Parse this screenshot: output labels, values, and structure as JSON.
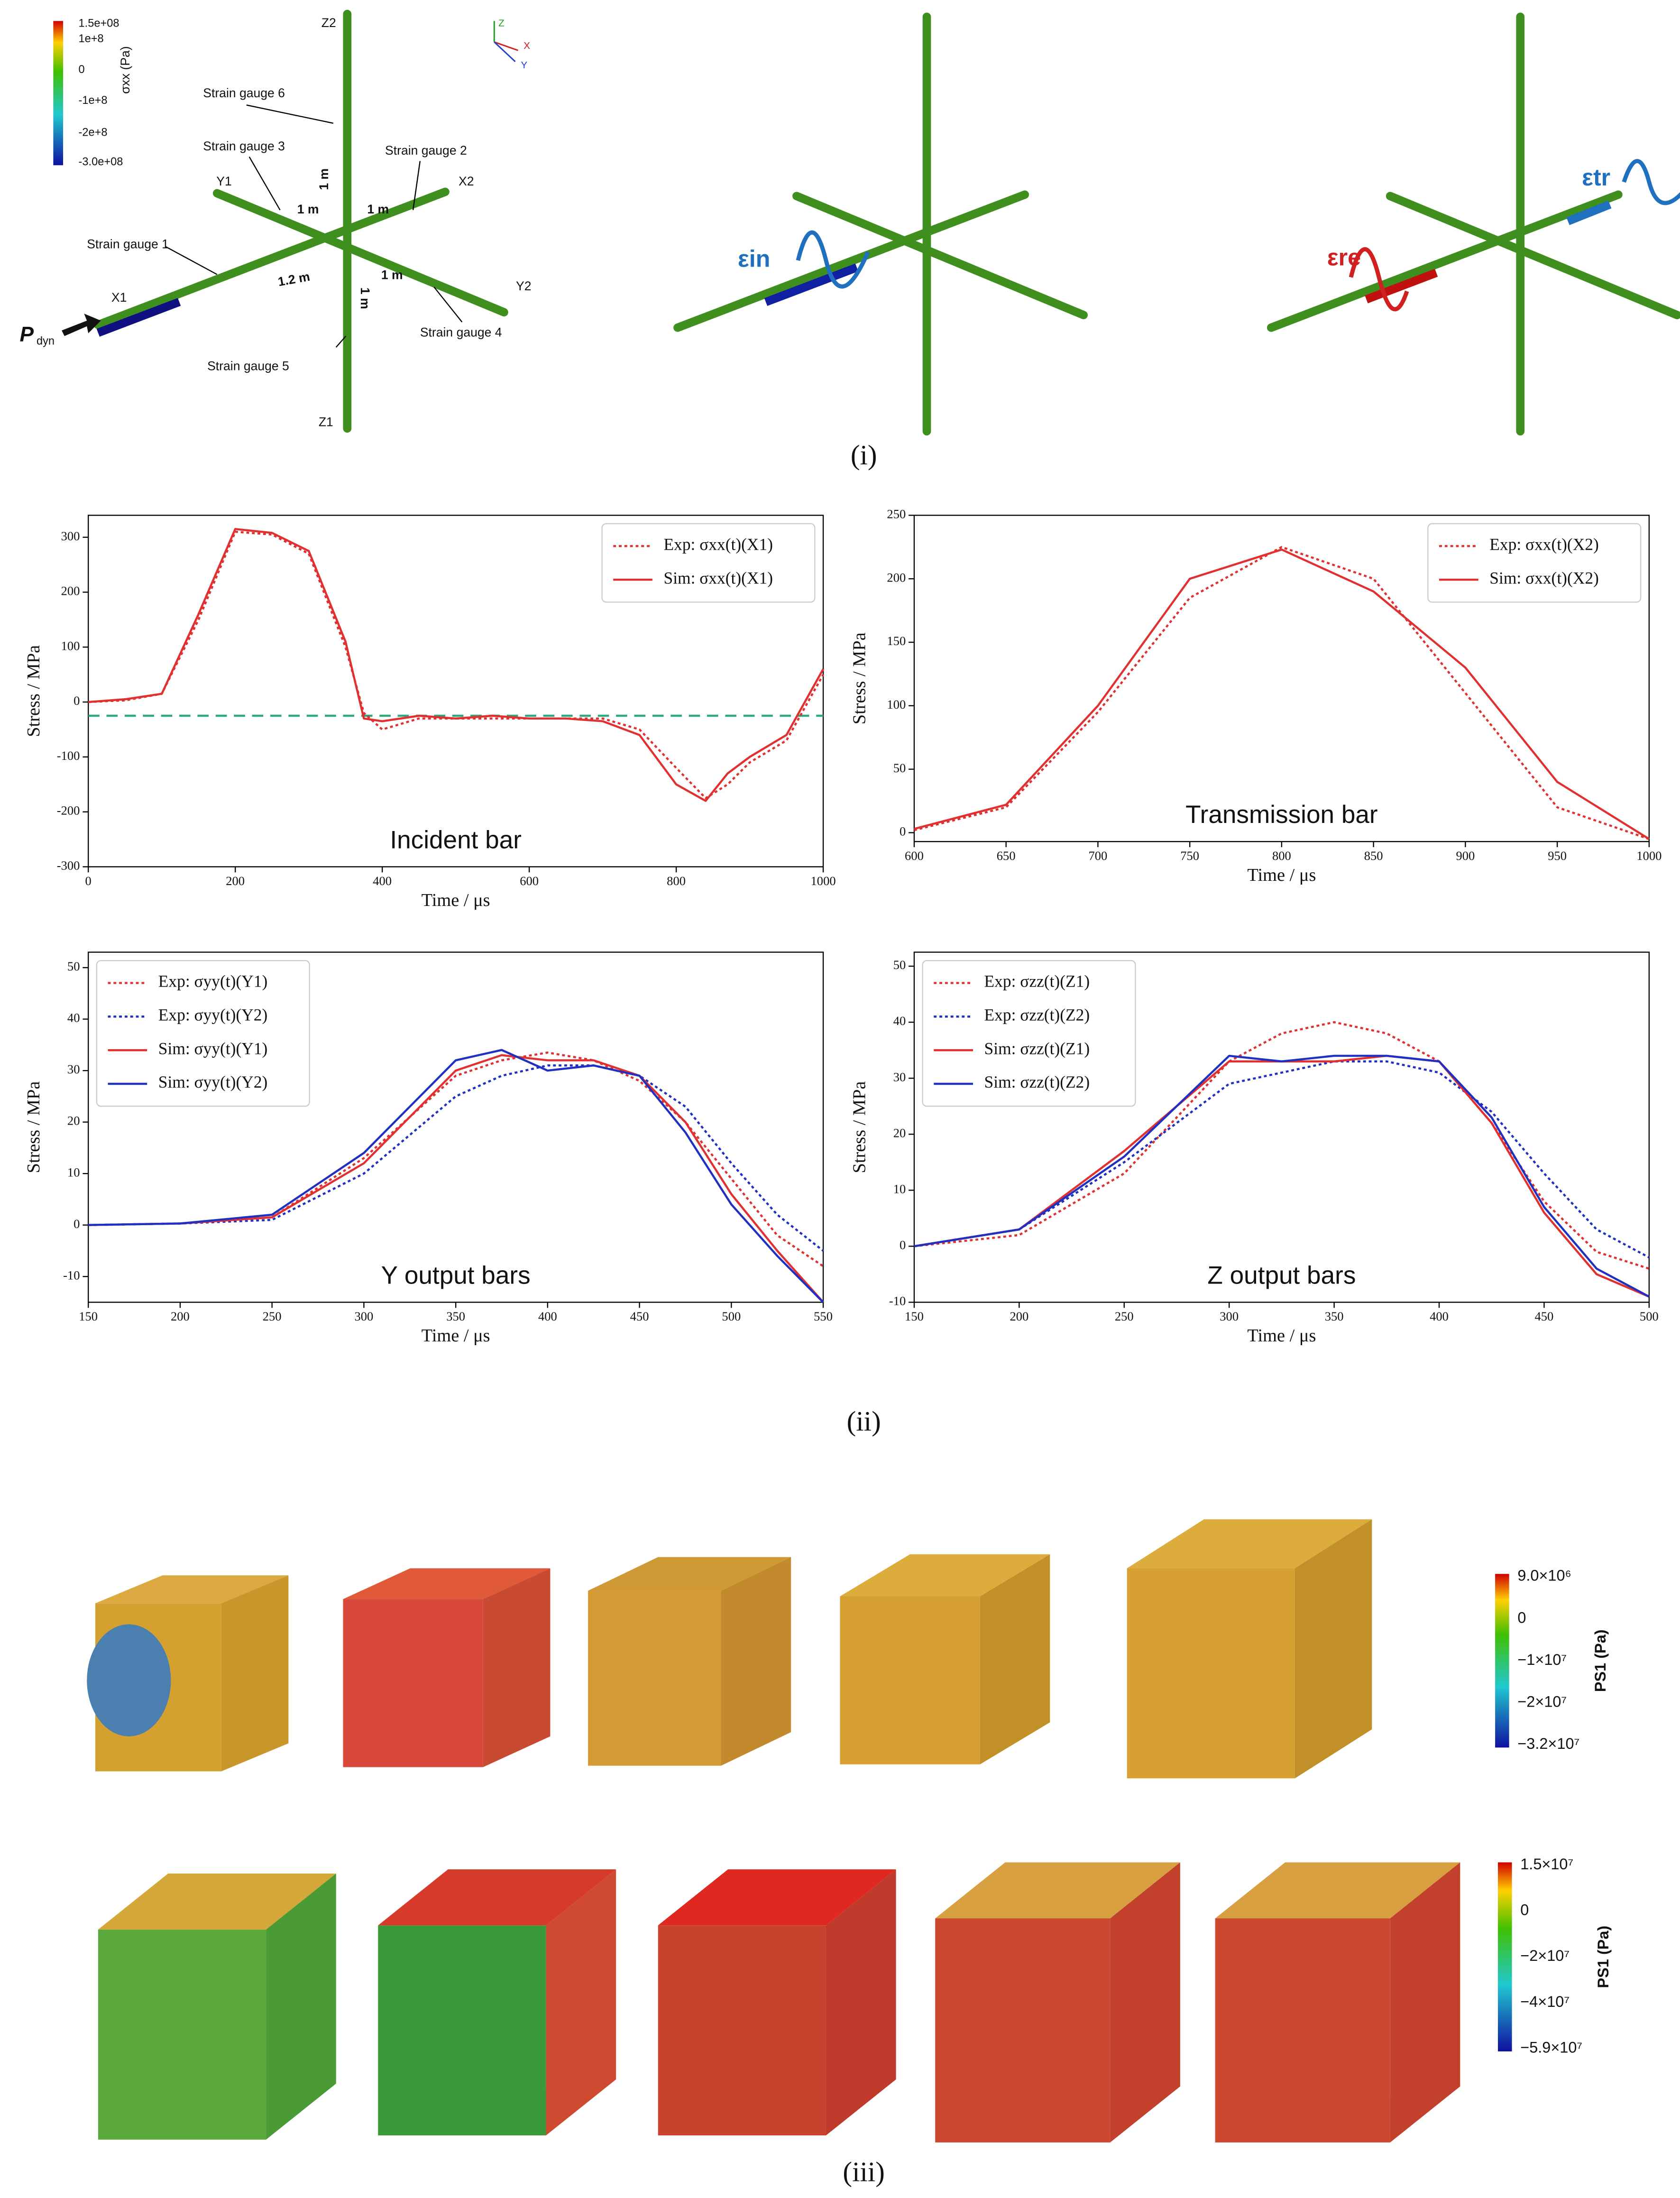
{
  "figure": {
    "panel_labels": [
      "(i)",
      "(ii)",
      "(iii)"
    ]
  },
  "diagram": {
    "colorbar": {
      "title": "σxx (Pa)",
      "ticks": [
        "1.5e+08",
        "1e+8",
        "0",
        "-1e+8",
        "-2e+8",
        "-3.0e+08"
      ]
    },
    "triad": [
      "Z",
      "X",
      "Y"
    ],
    "bar_labels": [
      "Z2",
      "Y1",
      "X2",
      "X1",
      "Y2",
      "Z1"
    ],
    "gauges": [
      "Strain gauge 6",
      "Strain gauge 3",
      "Strain gauge 2",
      "Strain gauge 1",
      "Strain gauge 4",
      "Strain gauge 5"
    ],
    "distances": [
      "1 m",
      "1 m",
      "1 m",
      "1.2 m",
      "1 m",
      "1 m"
    ],
    "load": "P",
    "load_sub": "dyn",
    "waves": [
      "εin",
      "εre",
      "εtr"
    ]
  },
  "chart_data": [
    {
      "type": "line",
      "annotation": "Incident bar",
      "xlabel": "Time / μs",
      "ylabel": "Stress / MPa",
      "xlim": [
        0,
        1000
      ],
      "xticks": [
        0,
        200,
        400,
        600,
        800,
        1000
      ],
      "ylim": [
        -300,
        340
      ],
      "yticks": [
        -300,
        -200,
        -100,
        0,
        100,
        200,
        300
      ],
      "legend": "upper right",
      "hline": {
        "value": -25,
        "color": "#2ca87f"
      },
      "x": [
        0,
        50,
        100,
        150,
        200,
        250,
        300,
        350,
        375,
        400,
        450,
        500,
        550,
        600,
        650,
        700,
        750,
        800,
        840,
        870,
        900,
        950,
        1000
      ],
      "series": [
        {
          "name": "Exp: σxx(t)(X1)",
          "color": "#e03030",
          "style": "dotted",
          "values": [
            0,
            3,
            15,
            150,
            310,
            305,
            270,
            100,
            -20,
            -50,
            -30,
            -30,
            -30,
            -30,
            -30,
            -30,
            -50,
            -120,
            -175,
            -150,
            -110,
            -70,
            50
          ]
        },
        {
          "name": "Sim: σxx(t)(X1)",
          "color": "#e03030",
          "style": "solid",
          "values": [
            0,
            5,
            15,
            160,
            315,
            308,
            275,
            110,
            -30,
            -35,
            -25,
            -30,
            -25,
            -30,
            -30,
            -35,
            -60,
            -150,
            -180,
            -130,
            -100,
            -60,
            60
          ]
        }
      ]
    },
    {
      "type": "line",
      "annotation": "Transmission bar",
      "xlabel": "Time / μs",
      "ylabel": "Stress / MPa",
      "xlim": [
        600,
        1000
      ],
      "xticks": [
        600,
        650,
        700,
        750,
        800,
        850,
        900,
        950,
        1000
      ],
      "ylim": [
        -7,
        250
      ],
      "yticks": [
        0,
        50,
        100,
        150,
        200,
        250
      ],
      "legend": "upper right",
      "x": [
        600,
        650,
        700,
        750,
        800,
        850,
        900,
        950,
        1000
      ],
      "series": [
        {
          "name": "Exp: σxx(t)(X2)",
          "color": "#e03030",
          "style": "dotted",
          "values": [
            2,
            20,
            95,
            185,
            225,
            200,
            110,
            20,
            -5
          ]
        },
        {
          "name": "Sim: σxx(t)(X2)",
          "color": "#e03030",
          "style": "solid",
          "values": [
            3,
            22,
            100,
            200,
            223,
            190,
            130,
            40,
            -5
          ]
        }
      ]
    },
    {
      "type": "line",
      "annotation": "Y output bars",
      "xlabel": "Time / μs",
      "ylabel": "Stress / MPa",
      "xlim": [
        150,
        550
      ],
      "xticks": [
        150,
        200,
        250,
        300,
        350,
        400,
        450,
        500,
        550
      ],
      "ylim": [
        -15,
        53
      ],
      "yticks": [
        -10,
        0,
        10,
        20,
        30,
        40,
        50
      ],
      "legend": "upper left",
      "x": [
        150,
        200,
        250,
        300,
        350,
        375,
        400,
        425,
        450,
        475,
        500,
        525,
        550
      ],
      "series": [
        {
          "name": "Exp: σyy(t)(Y1)",
          "color": "#e03030",
          "style": "dotted",
          "values": [
            0,
            0.3,
            1.5,
            13,
            29,
            32,
            33.5,
            32,
            28,
            20,
            9,
            -2,
            -8
          ]
        },
        {
          "name": "Exp: σyy(t)(Y2)",
          "color": "#2030c0",
          "style": "dotted",
          "values": [
            0,
            0.3,
            1,
            10,
            25,
            29,
            31,
            31,
            29,
            23,
            12,
            2,
            -5
          ]
        },
        {
          "name": "Sim: σyy(t)(Y1)",
          "color": "#e03030",
          "style": "solid",
          "values": [
            0,
            0.3,
            1.5,
            12,
            30,
            33,
            32,
            32,
            29,
            20,
            6,
            -5,
            -15
          ]
        },
        {
          "name": "Sim: σyy(t)(Y2)",
          "color": "#2030c0",
          "style": "solid",
          "values": [
            0,
            0.3,
            2,
            14,
            32,
            34,
            30,
            31,
            29,
            18,
            4,
            -6,
            -15
          ]
        }
      ]
    },
    {
      "type": "line",
      "annotation": "Z output bars",
      "xlabel": "Time / μs",
      "ylabel": "Stress / MPa",
      "xlim": [
        150,
        500
      ],
      "xticks": [
        150,
        200,
        250,
        300,
        350,
        400,
        450,
        500
      ],
      "ylim": [
        -10,
        52.5
      ],
      "yticks": [
        -10,
        0,
        10,
        20,
        30,
        40,
        50
      ],
      "legend": "upper left",
      "x": [
        150,
        200,
        250,
        300,
        325,
        350,
        375,
        400,
        425,
        450,
        475,
        500
      ],
      "series": [
        {
          "name": "Exp: σzz(t)(Z1)",
          "color": "#e03030",
          "style": "dotted",
          "values": [
            0,
            2,
            13,
            33,
            38,
            40,
            38,
            33,
            22,
            8,
            -1,
            -4
          ]
        },
        {
          "name": "Exp: σzz(t)(Z2)",
          "color": "#2030c0",
          "style": "dotted",
          "values": [
            0,
            3,
            15,
            29,
            31,
            33,
            33,
            31,
            24,
            13,
            3,
            -2
          ]
        },
        {
          "name": "Sim: σzz(t)(Z1)",
          "color": "#e03030",
          "style": "solid",
          "values": [
            0,
            3,
            17,
            33,
            33,
            33,
            34,
            33,
            22,
            6,
            -5,
            -9
          ]
        },
        {
          "name": "Sim: σzz(t)(Z2)",
          "color": "#2030c0",
          "style": "solid",
          "values": [
            0,
            3,
            16,
            34,
            33,
            34,
            34,
            33,
            23,
            7,
            -4,
            -9
          ]
        }
      ]
    }
  ],
  "results": {
    "colorbars": [
      {
        "title": "PS1 (Pa)",
        "ticks": [
          "9.0×10⁶",
          "0",
          "−1×10⁷",
          "−2×10⁷",
          "−3.2×10⁷"
        ]
      },
      {
        "title": "PS1 (Pa)",
        "ticks": [
          "1.5×10⁷",
          "0",
          "−2×10⁷",
          "−4×10⁷",
          "−5.9×10⁷"
        ]
      }
    ]
  }
}
